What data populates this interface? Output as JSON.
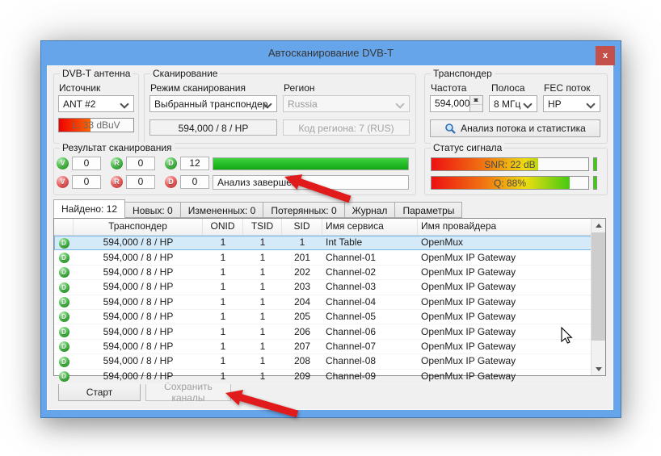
{
  "window": {
    "title": "Автосканирование DVB-T",
    "close_glyph": "x"
  },
  "antenna_group": {
    "title": "DVB-T антенна",
    "source_label": "Источник",
    "source_value": "ANT #2",
    "level_text": "L: 33 dBuV",
    "level_percent": 42
  },
  "scan_group": {
    "title": "Сканирование",
    "mode_label": "Режим сканирования",
    "mode_value": "Выбранный транспондер",
    "region_label": "Регион",
    "region_value": "Russia",
    "transponder_value": "594,000 / 8 / HP",
    "region_code_value": "Код региона: 7 (RUS)"
  },
  "transponder_group": {
    "title": "Транспондер",
    "freq_label": "Частота",
    "freq_value": "594,000",
    "band_label": "Полоса",
    "band_value": "8 МГц",
    "fec_label": "FEC поток",
    "fec_value": "HP",
    "analyze_button": "Анализ потока и статистика"
  },
  "result_group": {
    "title": "Результат сканирования",
    "counters_found": [
      {
        "letter": "V",
        "value": "0"
      },
      {
        "letter": "R",
        "value": "0"
      },
      {
        "letter": "D",
        "value": "12"
      }
    ],
    "counters_lost": [
      {
        "letter": "V",
        "value": "0"
      },
      {
        "letter": "R",
        "value": "0"
      },
      {
        "letter": "D",
        "value": "0"
      }
    ],
    "progress_percent": 100,
    "status_text": "Анализ завершен."
  },
  "signal_group": {
    "title": "Статус сигнала",
    "snr_text": "SNR: 22 dB",
    "snr_percent": 68,
    "q_text": "Q: 88%",
    "q_percent": 88
  },
  "tabs": [
    {
      "label": "Найдено: 12",
      "active": true
    },
    {
      "label": "Новых: 0",
      "active": false
    },
    {
      "label": "Измененных: 0",
      "active": false
    },
    {
      "label": "Потерянных: 0",
      "active": false
    },
    {
      "label": "Журнал",
      "active": false
    },
    {
      "label": "Параметры",
      "active": false
    }
  ],
  "table": {
    "headers": [
      "",
      "Транспондер",
      "ONID",
      "TSID",
      "SID",
      "Имя сервиса",
      "Имя провайдера"
    ],
    "rows": [
      {
        "icon": "D",
        "tp": "594,000 / 8 / HP",
        "onid": "1",
        "tsid": "1",
        "sid": "1",
        "service": "Int Table",
        "provider": "OpenMux",
        "selected": true
      },
      {
        "icon": "D",
        "tp": "594,000 / 8 / HP",
        "onid": "1",
        "tsid": "1",
        "sid": "201",
        "service": "Channel-01",
        "provider": "OpenMux IP Gateway",
        "selected": false
      },
      {
        "icon": "D",
        "tp": "594,000 / 8 / HP",
        "onid": "1",
        "tsid": "1",
        "sid": "202",
        "service": "Channel-02",
        "provider": "OpenMux IP Gateway",
        "selected": false
      },
      {
        "icon": "D",
        "tp": "594,000 / 8 / HP",
        "onid": "1",
        "tsid": "1",
        "sid": "203",
        "service": "Channel-03",
        "provider": "OpenMux IP Gateway",
        "selected": false
      },
      {
        "icon": "D",
        "tp": "594,000 / 8 / HP",
        "onid": "1",
        "tsid": "1",
        "sid": "204",
        "service": "Channel-04",
        "provider": "OpenMux IP Gateway",
        "selected": false
      },
      {
        "icon": "D",
        "tp": "594,000 / 8 / HP",
        "onid": "1",
        "tsid": "1",
        "sid": "205",
        "service": "Channel-05",
        "provider": "OpenMux IP Gateway",
        "selected": false
      },
      {
        "icon": "D",
        "tp": "594,000 / 8 / HP",
        "onid": "1",
        "tsid": "1",
        "sid": "206",
        "service": "Channel-06",
        "provider": "OpenMux IP Gateway",
        "selected": false
      },
      {
        "icon": "D",
        "tp": "594,000 / 8 / HP",
        "onid": "1",
        "tsid": "1",
        "sid": "207",
        "service": "Channel-07",
        "provider": "OpenMux IP Gateway",
        "selected": false
      },
      {
        "icon": "D",
        "tp": "594,000 / 8 / HP",
        "onid": "1",
        "tsid": "1",
        "sid": "208",
        "service": "Channel-08",
        "provider": "OpenMux IP Gateway",
        "selected": false
      },
      {
        "icon": "D",
        "tp": "594,000 / 8 / HP",
        "onid": "1",
        "tsid": "1",
        "sid": "209",
        "service": "Channel-09",
        "provider": "OpenMux IP Gateway",
        "selected": false
      }
    ]
  },
  "footer": {
    "start_button": "Старт",
    "save_button": "Сохранить каналы"
  }
}
